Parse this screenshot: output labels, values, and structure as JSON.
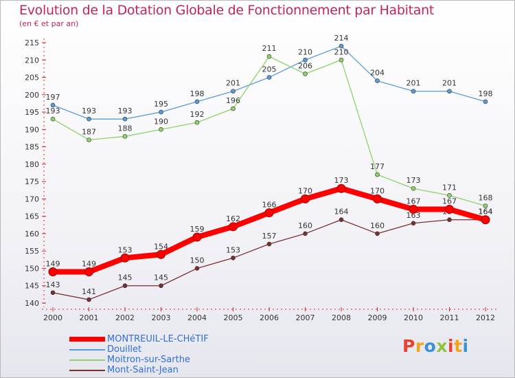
{
  "title": "Evolution de la Dotation Globale de Fonctionnement par Habitant",
  "subtitle": "(en € et par an)",
  "logo": {
    "text": "Proxiti",
    "letters": [
      {
        "ch": "P",
        "color": "#e8412d"
      },
      {
        "ch": "r",
        "color": "#f2a516"
      },
      {
        "ch": "o",
        "color": "#3c8fd9"
      },
      {
        "ch": "x",
        "color": "#8cc43c"
      },
      {
        "ch": "i",
        "color": "#e8412d"
      },
      {
        "ch": "t",
        "color": "#f2a516"
      },
      {
        "ch": "i",
        "color": "#3c8fd9"
      }
    ]
  },
  "chart_data": {
    "type": "line",
    "title": "Evolution de la Dotation Globale de Fonctionnement par Habitant",
    "subtitle": "(en € et par an)",
    "x": [
      2000,
      2001,
      2002,
      2003,
      2004,
      2005,
      2006,
      2007,
      2008,
      2009,
      2010,
      2011,
      2012
    ],
    "ylim": [
      140,
      215
    ],
    "yticks": [
      140,
      145,
      150,
      155,
      160,
      165,
      170,
      175,
      180,
      185,
      190,
      195,
      200,
      205,
      210,
      215
    ],
    "grid": false,
    "legend_position": "bottom-left",
    "series": [
      {
        "name": "MONTREUIL-LE-CHéTIF",
        "color": "#ff0000",
        "emphasis": true,
        "values": [
          149,
          149,
          153,
          154,
          159,
          162,
          166,
          170,
          173,
          170,
          167,
          167,
          164
        ]
      },
      {
        "name": "Douillet",
        "color": "#5b9bd5",
        "values": [
          197,
          193,
          193,
          195,
          198,
          201,
          205,
          210,
          214,
          204,
          201,
          201,
          198
        ]
      },
      {
        "name": "Moitron-sur-Sarthe",
        "color": "#8fd16a",
        "values": [
          193,
          187,
          188,
          190,
          192,
          196,
          211,
          206,
          210,
          177,
          173,
          171,
          168
        ]
      },
      {
        "name": "Mont-Saint-Jean",
        "color": "#7a2e2e",
        "values": [
          143,
          141,
          145,
          145,
          150,
          153,
          157,
          160,
          164,
          160,
          163,
          164,
          164
        ]
      }
    ]
  }
}
